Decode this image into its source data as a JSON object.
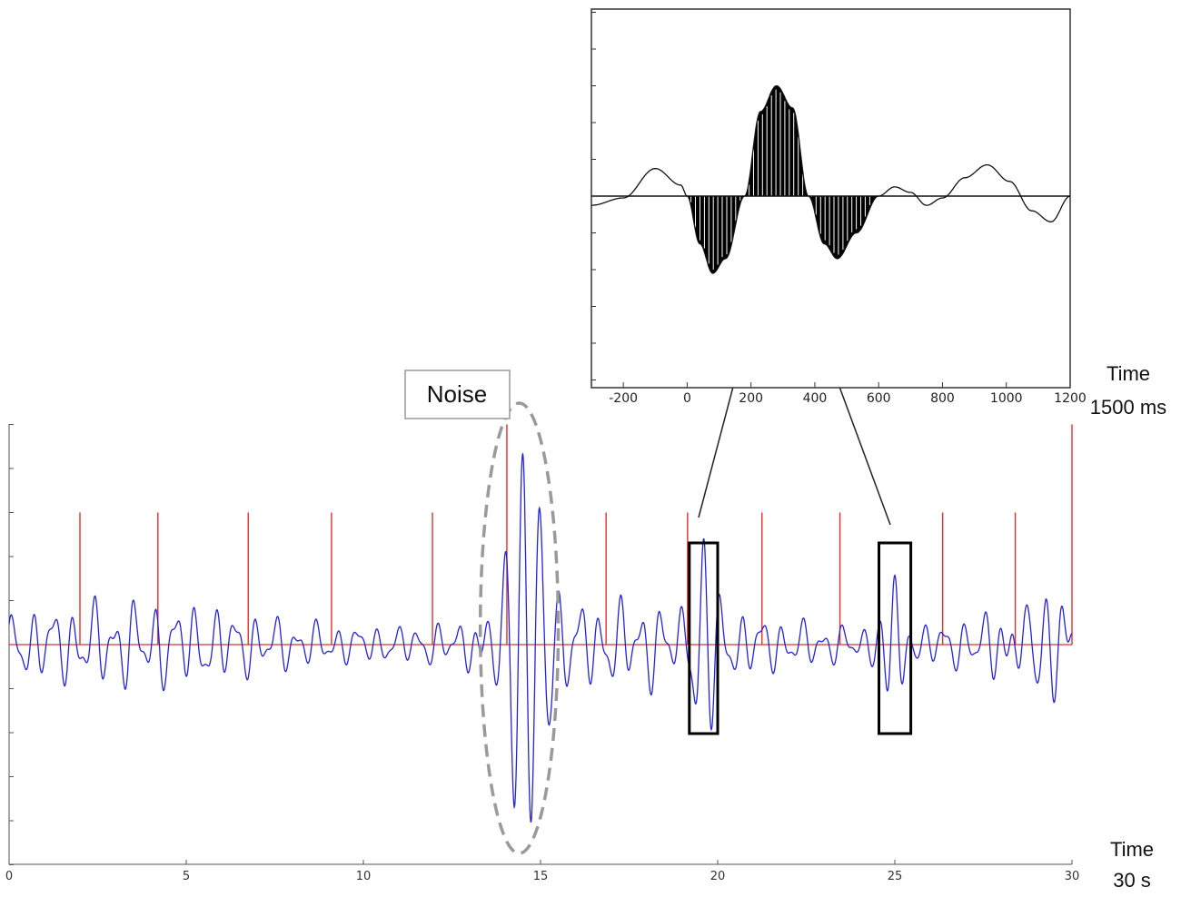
{
  "chart_data": [
    {
      "type": "line",
      "panel": "main",
      "x_ticks": [
        "0",
        "5",
        "10",
        "15",
        "20",
        "25",
        "30"
      ],
      "xlim": [
        0,
        30
      ],
      "ylim": [
        -5,
        5
      ],
      "x_unit_labels": {
        "line1": "Time",
        "line2": "30 s"
      },
      "baseline_color": "#e03030",
      "signal_color": "#2323d8",
      "stimulus_color": "#e03030",
      "stimulus_markers": [
        {
          "t": 2.0,
          "h": 3
        },
        {
          "t": 4.2,
          "h": 3
        },
        {
          "t": 6.75,
          "h": 3
        },
        {
          "t": 9.1,
          "h": 3
        },
        {
          "t": 11.95,
          "h": 3
        },
        {
          "t": 14.05,
          "h": 5
        },
        {
          "t": 16.85,
          "h": 3
        },
        {
          "t": 19.15,
          "h": 3
        },
        {
          "t": 21.25,
          "h": 3
        },
        {
          "t": 23.45,
          "h": 3
        },
        {
          "t": 26.35,
          "h": 3
        },
        {
          "t": 28.4,
          "h": 3
        },
        {
          "t": 30.0,
          "h": 5
        }
      ],
      "annotations": {
        "noise_label": "Noise",
        "noise_region": [
          13.3,
          15.5
        ],
        "highlight_windows": [
          [
            19.2,
            20.0
          ],
          [
            24.55,
            25.45
          ]
        ]
      }
    },
    {
      "type": "area",
      "panel": "inset",
      "x_ticks": [
        "-200",
        "0",
        "200",
        "400",
        "600",
        "800",
        "1000",
        "1200"
      ],
      "xlim": [
        -300,
        1200
      ],
      "ylim": [
        -5,
        5
      ],
      "x_unit_labels": {
        "line1": "Time",
        "line2": "1500 ms"
      },
      "fill_color": "#000000",
      "shaded_intervals": [
        [
          0,
          600
        ]
      ],
      "curve": [
        {
          "x": -300,
          "y": -0.25
        },
        {
          "x": -200,
          "y": -0.05
        },
        {
          "x": -100,
          "y": 0.75
        },
        {
          "x": -20,
          "y": 0.3
        },
        {
          "x": 0,
          "y": 0
        },
        {
          "x": 40,
          "y": -1.3
        },
        {
          "x": 80,
          "y": -2.1
        },
        {
          "x": 120,
          "y": -1.7
        },
        {
          "x": 180,
          "y": 0
        },
        {
          "x": 230,
          "y": 2.3
        },
        {
          "x": 280,
          "y": 3.0
        },
        {
          "x": 330,
          "y": 2.4
        },
        {
          "x": 380,
          "y": 0
        },
        {
          "x": 430,
          "y": -1.3
        },
        {
          "x": 470,
          "y": -1.7
        },
        {
          "x": 530,
          "y": -1.0
        },
        {
          "x": 600,
          "y": 0
        },
        {
          "x": 650,
          "y": 0.25
        },
        {
          "x": 700,
          "y": 0.1
        },
        {
          "x": 750,
          "y": -0.25
        },
        {
          "x": 800,
          "y": -0.05
        },
        {
          "x": 870,
          "y": 0.5
        },
        {
          "x": 940,
          "y": 0.85
        },
        {
          "x": 1010,
          "y": 0.4
        },
        {
          "x": 1080,
          "y": -0.4
        },
        {
          "x": 1140,
          "y": -0.7
        },
        {
          "x": 1200,
          "y": 0
        }
      ]
    }
  ]
}
